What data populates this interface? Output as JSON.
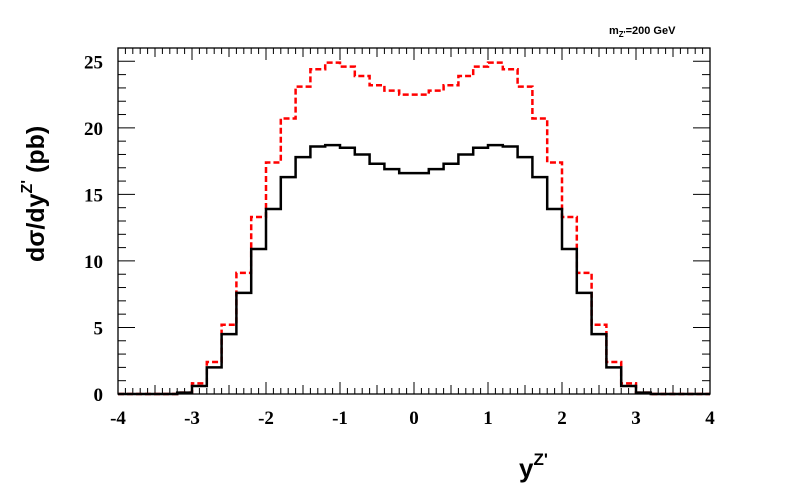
{
  "chart_data": {
    "type": "line",
    "style": "step-histogram",
    "annotation": {
      "main": "m",
      "sub": "Z'",
      "rest": "=200 GeV"
    },
    "xlabel": {
      "main": "y",
      "sup": "Z'"
    },
    "ylabel": {
      "main": "dσ/dy",
      "sup": "Z'",
      "unit": " (pb)"
    },
    "xlim": [
      -4,
      4
    ],
    "ylim": [
      0,
      26
    ],
    "xticks": [
      -4,
      -3,
      -2,
      -1,
      0,
      1,
      2,
      3,
      4
    ],
    "yticks": [
      0,
      5,
      10,
      15,
      20,
      25
    ],
    "grid": false,
    "bin_edges": [
      -4.0,
      -3.8,
      -3.6,
      -3.4,
      -3.2,
      -3.0,
      -2.8,
      -2.6,
      -2.4,
      -2.2,
      -2.0,
      -1.8,
      -1.6,
      -1.4,
      -1.2,
      -1.0,
      -0.8,
      -0.6,
      -0.4,
      -0.2,
      0.0,
      0.2,
      0.4,
      0.6,
      0.8,
      1.0,
      1.2,
      1.4,
      1.6,
      1.8,
      2.0,
      2.2,
      2.4,
      2.6,
      2.8,
      3.0,
      3.2,
      3.4,
      3.6,
      3.8,
      4.0
    ],
    "series": [
      {
        "color": "#ff0000",
        "dash": "dashed",
        "values": [
          0.0,
          0.0,
          0.0,
          0.0,
          0.1,
          0.8,
          2.4,
          5.2,
          9.1,
          13.3,
          17.4,
          20.7,
          23.1,
          24.4,
          24.9,
          24.6,
          23.9,
          23.2,
          22.8,
          22.5,
          22.5,
          22.8,
          23.2,
          23.9,
          24.6,
          24.9,
          24.4,
          23.1,
          20.7,
          17.4,
          13.3,
          9.1,
          5.2,
          2.4,
          0.8,
          0.1,
          0.0,
          0.0,
          0.0,
          0.0
        ]
      },
      {
        "color": "#000000",
        "dash": "solid",
        "values": [
          0.0,
          0.0,
          0.0,
          0.0,
          0.1,
          0.6,
          2.0,
          4.5,
          7.6,
          10.9,
          13.9,
          16.3,
          17.8,
          18.6,
          18.7,
          18.5,
          18.0,
          17.3,
          16.9,
          16.6,
          16.6,
          16.9,
          17.3,
          18.0,
          18.5,
          18.7,
          18.6,
          17.8,
          16.3,
          13.9,
          10.9,
          7.6,
          4.5,
          2.0,
          0.6,
          0.1,
          0.0,
          0.0,
          0.0,
          0.0
        ]
      }
    ]
  }
}
